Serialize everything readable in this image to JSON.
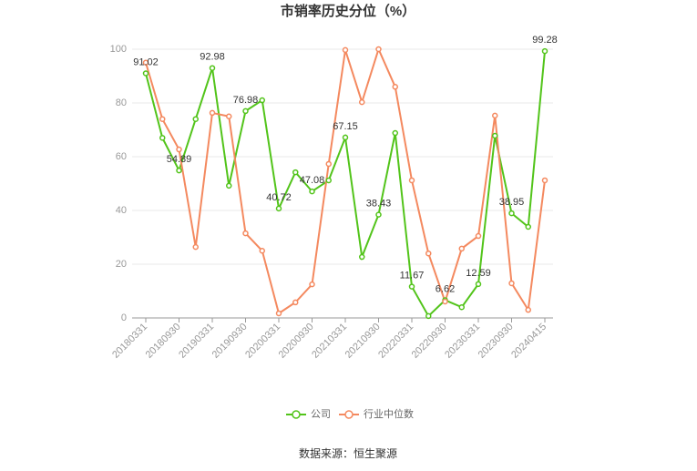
{
  "chart_data": {
    "type": "line",
    "title": "市销率历史分位（%）",
    "categories": [
      "20180331",
      null,
      "20180930",
      null,
      "20190331",
      null,
      "20190930",
      null,
      "20200331",
      null,
      "20200930",
      null,
      "20210331",
      null,
      "20210930",
      null,
      "20220331",
      null,
      "20220930",
      null,
      "20230331",
      null,
      "20230930",
      null,
      "20240415"
    ],
    "series": [
      {
        "name": "公司",
        "color": "#52c41a",
        "values": [
          91.02,
          67,
          54.89,
          74,
          92.98,
          49.2,
          76.98,
          81,
          40.72,
          54.2,
          47.08,
          51.2,
          67.15,
          22.7,
          38.43,
          68.8,
          11.67,
          0.7,
          6.62,
          4,
          12.59,
          67.8,
          38.95,
          33.9,
          99.28
        ]
      },
      {
        "name": "行业中位数",
        "color": "#f4895f",
        "values": [
          95,
          74,
          62.7,
          26.4,
          76.3,
          75,
          31.5,
          25,
          1.7,
          5.8,
          12.5,
          57.3,
          99.7,
          80.3,
          100,
          86,
          51.2,
          24,
          6.1,
          25.8,
          30.5,
          75.3,
          12.9,
          3,
          51.2
        ]
      }
    ],
    "ylim": [
      0,
      100
    ],
    "yticks": [
      0,
      20,
      40,
      60,
      80,
      100
    ],
    "grid": true,
    "source": "数据来源：恒生聚源"
  }
}
